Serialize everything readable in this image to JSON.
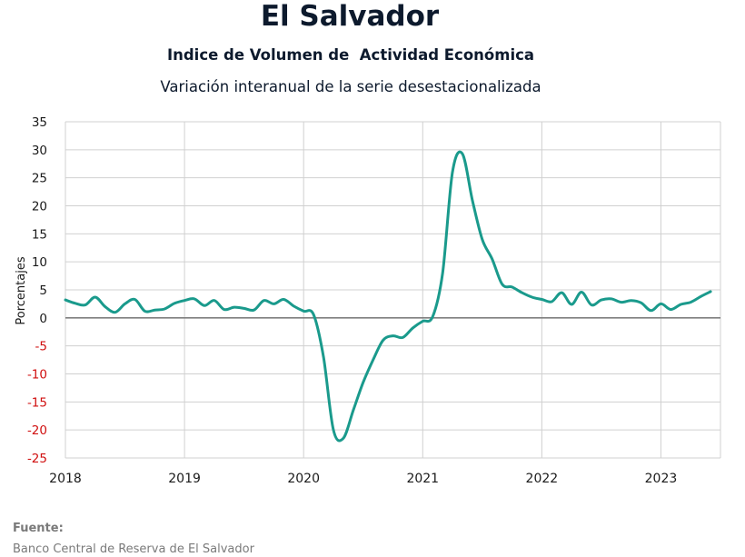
{
  "header": {
    "title": "El Salvador",
    "subtitle": "Indice de Volumen de  Actividad Económica",
    "subtitle2": "Variación interanual de la serie desestacionalizada"
  },
  "source": {
    "label": "Fuente:",
    "text": "Banco Central de Reserva de El Salvador"
  },
  "colors": {
    "line": "#1a9a8c",
    "grid": "#d0d0d0",
    "zero_line": "#7f7f7f",
    "negative_tick": "#d01010",
    "positive_tick": "#1a1a1a"
  },
  "chart_data": {
    "type": "line",
    "title": "",
    "xlabel": "",
    "ylabel": "Porcentajes",
    "ylim": [
      -25,
      35
    ],
    "y_ticks": [
      35,
      30,
      25,
      20,
      15,
      10,
      5,
      0,
      -5,
      -10,
      -15,
      -20,
      -25
    ],
    "xlim": [
      2018.0,
      2023.5
    ],
    "x_ticks": [
      "2018",
      "2019",
      "2020",
      "2021",
      "2022",
      "2023"
    ],
    "grid": true,
    "series": [
      {
        "x": [
          2018.0,
          2018.083,
          2018.167,
          2018.25,
          2018.333,
          2018.417,
          2018.5,
          2018.583,
          2018.667,
          2018.75,
          2018.833,
          2018.917,
          2019.0,
          2019.083,
          2019.167,
          2019.25,
          2019.333,
          2019.417,
          2019.5,
          2019.583,
          2019.667,
          2019.75,
          2019.833,
          2019.917,
          2020.0,
          2020.083,
          2020.167,
          2020.25,
          2020.333,
          2020.417,
          2020.5,
          2020.583,
          2020.667,
          2020.75,
          2020.833,
          2020.917,
          2021.0,
          2021.083,
          2021.167,
          2021.25,
          2021.333,
          2021.417,
          2021.5,
          2021.583,
          2021.667,
          2021.75,
          2021.833,
          2021.917,
          2022.0,
          2022.083,
          2022.167,
          2022.25,
          2022.333,
          2022.417,
          2022.5,
          2022.583,
          2022.667,
          2022.75,
          2022.833,
          2022.917,
          2023.0,
          2023.083,
          2023.167,
          2023.25,
          2023.333,
          2023.417
        ],
        "values": [
          3.2,
          2.6,
          2.3,
          3.7,
          2.0,
          1.0,
          2.5,
          3.3,
          1.2,
          1.4,
          1.6,
          2.6,
          3.1,
          3.4,
          2.2,
          3.1,
          1.5,
          1.9,
          1.7,
          1.4,
          3.1,
          2.5,
          3.3,
          2.1,
          1.2,
          0.6,
          -7.0,
          -20.0,
          -21.5,
          -16.5,
          -11.5,
          -7.5,
          -4.0,
          -3.2,
          -3.5,
          -1.8,
          -0.6,
          0.2,
          8.0,
          26.0,
          29.3,
          21.0,
          14.0,
          10.5,
          6.0,
          5.5,
          4.5,
          3.7,
          3.3,
          2.9,
          4.5,
          2.4,
          4.6,
          2.3,
          3.2,
          3.4,
          2.8,
          3.1,
          2.7,
          1.3,
          2.5,
          1.5,
          2.4,
          2.8,
          3.8,
          4.7
        ]
      }
    ]
  }
}
